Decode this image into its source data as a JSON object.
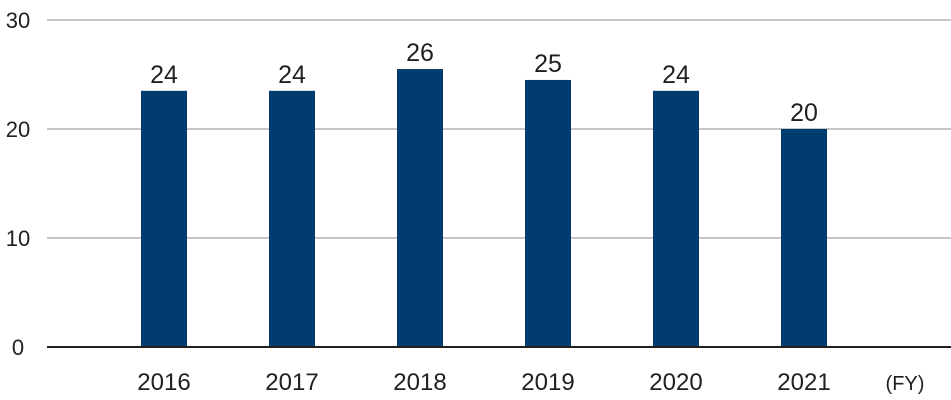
{
  "chart_data": {
    "type": "bar",
    "categories": [
      "2016",
      "2017",
      "2018",
      "2019",
      "2020",
      "2021"
    ],
    "values": [
      23.5,
      23.5,
      25.5,
      24.5,
      23.5,
      20
    ],
    "data_labels": [
      "24",
      "24",
      "26",
      "25",
      "24",
      "20"
    ],
    "y_ticks": [
      "0",
      "10",
      "20",
      "30"
    ],
    "ylim": [
      0,
      30
    ],
    "x_unit_label": "(FY)",
    "grid": true,
    "bar_color": "#003d6e",
    "grid_color": "#8c8c8c",
    "axis_color": "#231f20"
  }
}
